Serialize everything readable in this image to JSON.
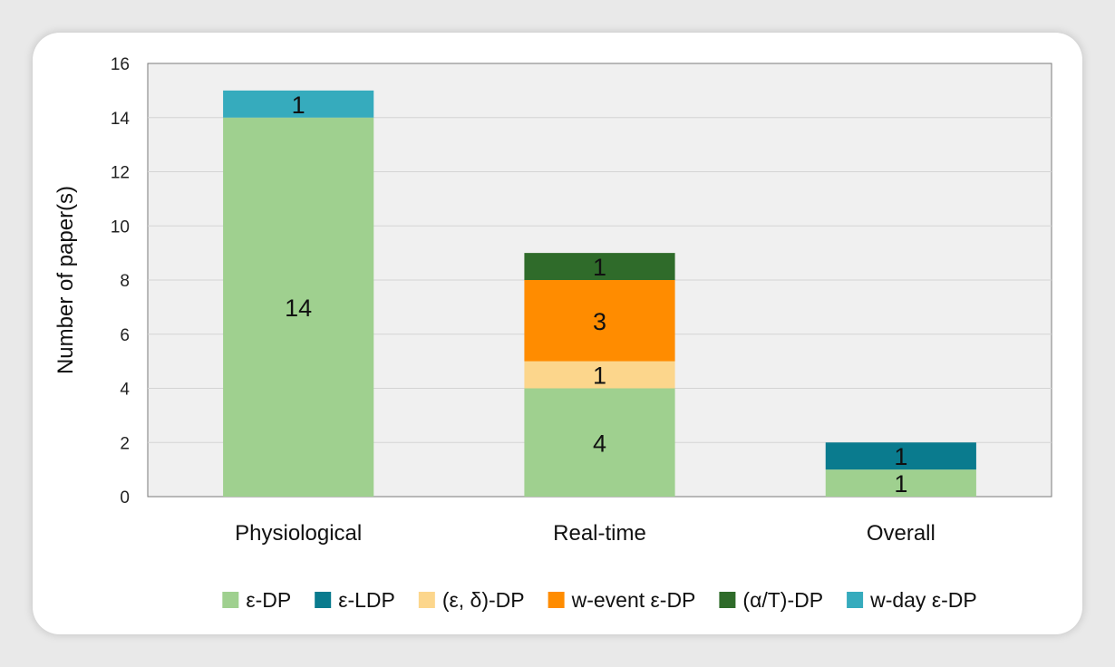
{
  "chart_data": {
    "type": "bar",
    "stacked": true,
    "categories": [
      "Physiological",
      "Real-time",
      "Overall"
    ],
    "ylabel": "Number of paper(s)",
    "xlabel": "",
    "ylim": [
      0,
      16
    ],
    "yticks": [
      0,
      2,
      4,
      6,
      8,
      10,
      12,
      14,
      16
    ],
    "grid": true,
    "legend_position": "bottom",
    "series": [
      {
        "name": "ε-DP",
        "color": "#9fd08f",
        "values": [
          14,
          4,
          1
        ]
      },
      {
        "name": "ε-LDP",
        "color": "#0a7b8e",
        "values": [
          0,
          0,
          1
        ]
      },
      {
        "name": "(ε, δ)-DP",
        "color": "#fcd68c",
        "values": [
          0,
          1,
          0
        ]
      },
      {
        "name": "w-event ε-DP",
        "color": "#ff8c00",
        "values": [
          0,
          3,
          0
        ]
      },
      {
        "name": "(α/T)-DP",
        "color": "#2f6b2a",
        "values": [
          0,
          1,
          0
        ]
      },
      {
        "name": "w-day ε-DP",
        "color": "#36abbd",
        "values": [
          1,
          0,
          0
        ]
      }
    ]
  }
}
